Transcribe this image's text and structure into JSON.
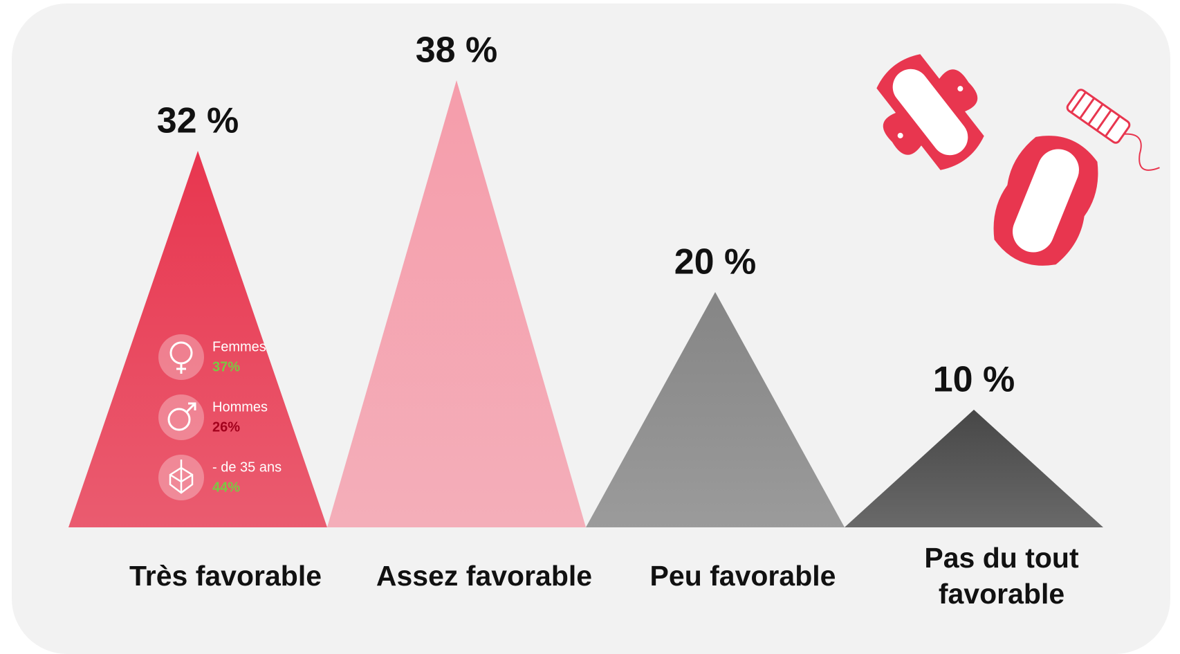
{
  "chart_data": {
    "type": "triangle",
    "categories": [
      "Très favorable",
      "Assez favorable",
      "Peu favorable",
      "Pas du tout favorable"
    ],
    "values": [
      32,
      38,
      20,
      10
    ],
    "value_labels": [
      "32 %",
      "38 %",
      "20 %",
      "10 %"
    ],
    "colors": [
      "#e8364f",
      "#f59dab",
      "#858585",
      "#474747"
    ],
    "annotations": [
      {
        "label": "Femmes",
        "value": 37,
        "value_label": "37%",
        "color": "#7ac943"
      },
      {
        "label": "Hommes",
        "value": 26,
        "value_label": "26%",
        "color": "#a3001c"
      },
      {
        "label": "- de 35 ans",
        "value": 44,
        "value_label": "44%",
        "color": "#7ac943"
      }
    ]
  }
}
